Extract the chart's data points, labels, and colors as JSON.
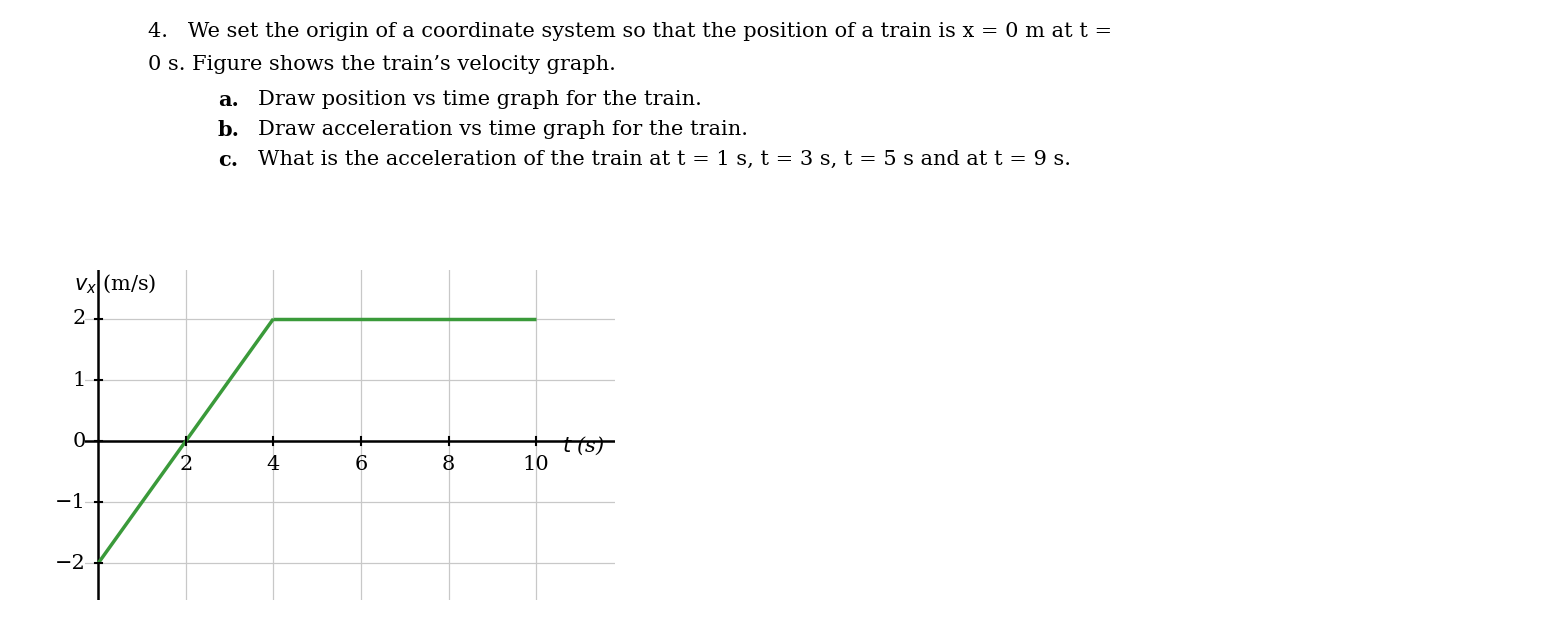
{
  "main_line1": "4.   We set the origin of a coordinate system so that the position of a train is x = 0 m at t =",
  "main_line2": "0 s. Figure shows the train’s velocity graph.",
  "sub_a_label": "a.",
  "sub_a_text": "Draw position vs time graph for the train.",
  "sub_b_label": "b.",
  "sub_b_text": "Draw acceleration vs time graph for the train.",
  "sub_c_label": "c.",
  "sub_c_text": "What is the acceleration of the train at t = 1 s, t = 3 s, t = 5 s and at t = 9 s.",
  "line_segments": [
    {
      "x": [
        0,
        4
      ],
      "y": [
        -2,
        2
      ]
    },
    {
      "x": [
        4,
        10
      ],
      "y": [
        2,
        2
      ]
    }
  ],
  "line_color": "#3a9a3a",
  "line_width": 2.5,
  "xlim": [
    -0.3,
    11.8
  ],
  "ylim": [
    -2.6,
    2.8
  ],
  "xticks": [
    2,
    4,
    6,
    8,
    10
  ],
  "yticks": [
    -2,
    -1,
    0,
    1,
    2
  ],
  "grid_color": "#c8c8c8",
  "grid_linewidth": 0.9,
  "axis_linewidth": 1.8,
  "text_fontsize": 15,
  "tick_fontsize": 15,
  "label_fontsize": 15,
  "background_color": "#ffffff"
}
